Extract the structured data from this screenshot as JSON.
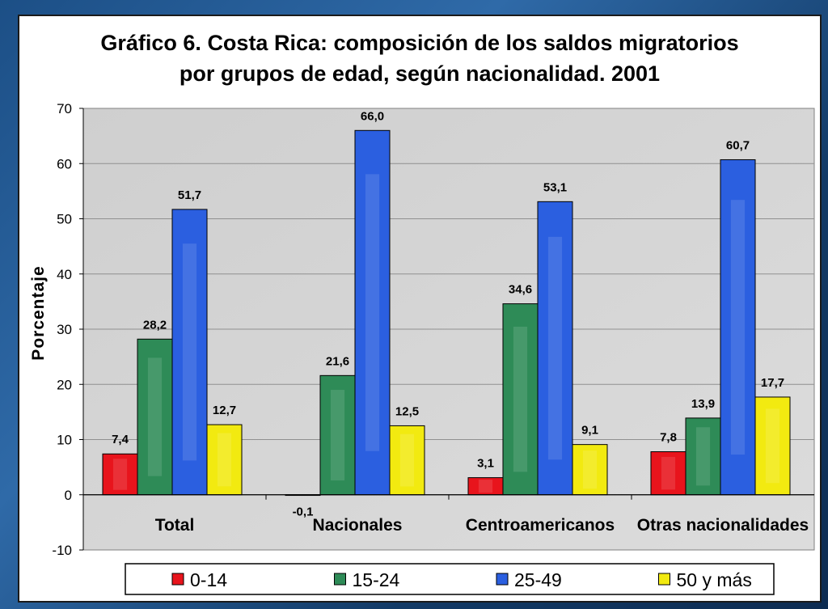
{
  "chart_data": {
    "type": "bar",
    "title_line1": "Gráfico 6. Costa Rica: composición de los saldos migratorios",
    "title_line2": "por grupos de edad, según nacionalidad. 2001",
    "xlabel": "",
    "ylabel": "Porcentaje",
    "ylim": [
      -10,
      70
    ],
    "yticks": [
      -10,
      0,
      10,
      20,
      30,
      40,
      50,
      60,
      70
    ],
    "grid": true,
    "legend_position": "bottom",
    "categories": [
      "Total",
      "Nacionales",
      "Centroamericanos",
      "Otras nacionalidades"
    ],
    "series": [
      {
        "name": "0-14",
        "color": "#e8141c",
        "values": [
          7.4,
          -0.1,
          3.1,
          7.8
        ],
        "labels": [
          "7,4",
          "-0,1",
          "3,1",
          "7,8"
        ]
      },
      {
        "name": "15-24",
        "color": "#2e8b57",
        "values": [
          28.2,
          21.6,
          34.6,
          13.9
        ],
        "labels": [
          "28,2",
          "21,6",
          "34,6",
          "13,9"
        ]
      },
      {
        "name": "25-49",
        "color": "#2b5fe0",
        "values": [
          51.7,
          66.0,
          53.1,
          60.7
        ],
        "labels": [
          "51,7",
          "66,0",
          "53,1",
          "60,7"
        ]
      },
      {
        "name": "50 y más",
        "color": "#f2ea10",
        "values": [
          12.7,
          12.5,
          9.1,
          17.7
        ],
        "labels": [
          "12,7",
          "12,5",
          "9,1",
          "17,7"
        ]
      }
    ]
  }
}
